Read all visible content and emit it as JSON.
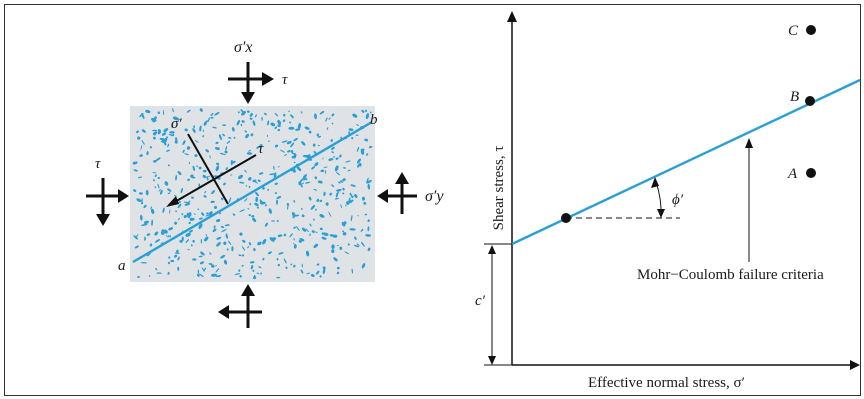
{
  "colors": {
    "soil_fill": "#dfe3e6",
    "grain": "#2a9fd6",
    "failure_line": "#2a9fd6",
    "ink": "#111111",
    "frame": "#333333"
  },
  "element": {
    "sigma_x_label": "σ′x",
    "sigma_y_label": "σ′y",
    "tau_top_label": "τ",
    "tau_left_label": "τ",
    "sigma_plane_label": "σ′",
    "tau_plane_label": "τ",
    "point_a": "a",
    "point_b": "b"
  },
  "graph": {
    "y_axis_label": "Shear stress, τ",
    "x_axis_label": "Effective normal stress, σ′",
    "phi_label": "ϕ′",
    "cohesion_label": "c′",
    "failure_label": "Mohr−Coulomb failure criteria",
    "point_A": "A",
    "point_B": "B",
    "point_C": "C"
  }
}
